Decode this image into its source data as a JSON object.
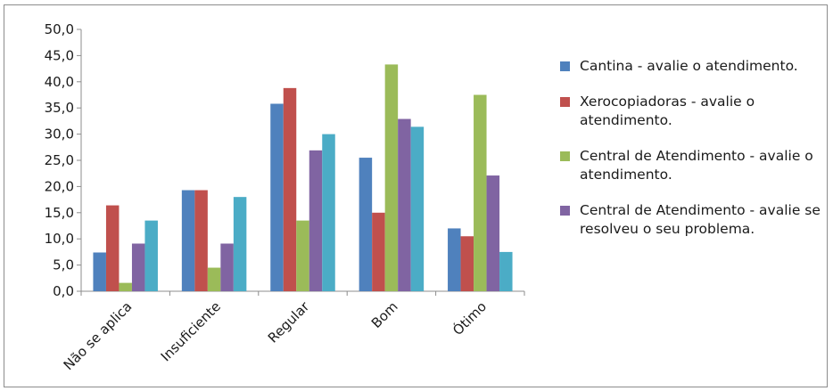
{
  "chart_data": {
    "type": "bar",
    "categories": [
      "Não se aplica",
      "Insuficiente",
      "Regular",
      "Bom",
      "Ótimo"
    ],
    "series": [
      {
        "name": "Cantina - avalie o atendimento.",
        "color": "#4f81bd",
        "values": [
          7.4,
          19.3,
          35.8,
          25.5,
          12.0
        ]
      },
      {
        "name": "Xerocopiadoras - avalie o atendimento.",
        "color": "#c0504d",
        "values": [
          16.4,
          19.3,
          38.8,
          15.0,
          10.5
        ]
      },
      {
        "name": "Central de Atendimento - avalie o atendimento.",
        "color": "#9bbb59",
        "values": [
          1.6,
          4.5,
          13.5,
          43.3,
          37.5
        ]
      },
      {
        "name": "Central de Atendimento - avalie se resolveu o seu problema.",
        "color": "#8064a2",
        "values": [
          9.1,
          9.1,
          26.9,
          32.9,
          22.1
        ]
      },
      {
        "name": "",
        "color": "#4bacc6",
        "values": [
          13.5,
          18.0,
          30.0,
          31.4,
          7.5
        ]
      }
    ],
    "y_ticks": [
      "0,0",
      "5,0",
      "10,0",
      "15,0",
      "20,0",
      "25,0",
      "30,0",
      "35,0",
      "40,0",
      "45,0",
      "50,0"
    ],
    "ylim": [
      0,
      50
    ],
    "grid": false,
    "legend": "right",
    "title": "",
    "xlabel": "",
    "ylabel": ""
  }
}
